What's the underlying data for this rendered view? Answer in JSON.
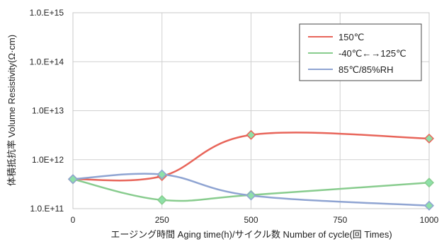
{
  "chart_data": {
    "type": "line",
    "title": "",
    "xlabel": "エージング時間 Aging time(h)/サイクル数 Number of cycle(回 Times)",
    "ylabel": "体積抵抗率 Volume Resistivity(Ω·cm)",
    "x_ticks": [
      "0",
      "250",
      "500",
      "750",
      "1000"
    ],
    "y_ticks": [
      "1.0.E+11",
      "1.0E+12",
      "1.0E+13",
      "1.0.E+14",
      "1.0.E+15"
    ],
    "xlim": [
      0,
      1000
    ],
    "ylim": [
      100000000000.0,
      1000000000000000.0
    ],
    "y_scale": "log",
    "grid": true,
    "legend_position": "top-right",
    "x": [
      0,
      250,
      500,
      1000
    ],
    "series": [
      {
        "name": "150℃",
        "color": "#e8655a",
        "values": [
          400000000000.0,
          460000000000.0,
          3200000000000.0,
          2700000000000.0
        ]
      },
      {
        "name": "-40℃←→125℃",
        "color": "#88cc8e",
        "values": [
          400000000000.0,
          150000000000.0,
          190000000000.0,
          340000000000.0
        ]
      },
      {
        "name": "85℃/85%RH",
        "color": "#8fa4d2",
        "values": [
          400000000000.0,
          500000000000.0,
          185000000000.0,
          115000000000.0
        ]
      }
    ],
    "marker_color": "#8ee0a8"
  }
}
